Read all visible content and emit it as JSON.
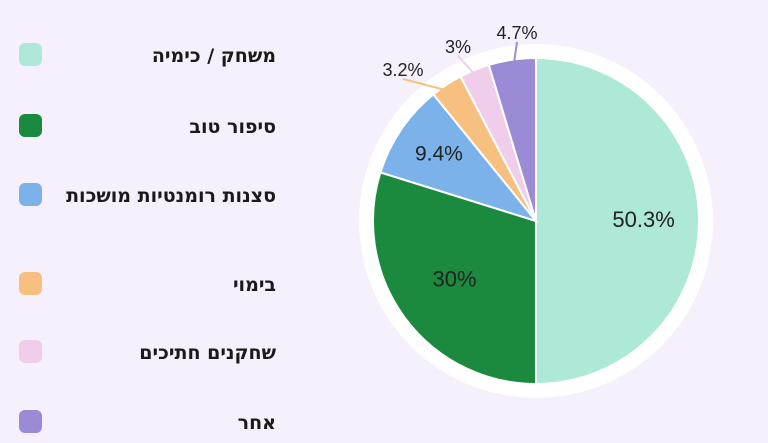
{
  "chart_data": {
    "type": "pie",
    "title": "",
    "series": [
      {
        "name": "משחק / כימיה",
        "value": 50.3,
        "label": "50.3%",
        "color": "#aee8d6"
      },
      {
        "name": "סיפור טוב",
        "value": 30,
        "label": "30%",
        "color": "#1b8a3e"
      },
      {
        "name": "סצנות רומנטיות מושכות",
        "value": 9.4,
        "label": "9.4%",
        "color": "#7cb2ea"
      },
      {
        "name": "בימוי",
        "value": 3.2,
        "label": "3.2%",
        "color": "#f7c080"
      },
      {
        "name": "שחקנים חתיכים",
        "value": 3,
        "label": "3%",
        "color": "#f0cdea"
      },
      {
        "name": "אחר",
        "value": 4.7,
        "label": "4.7%",
        "color": "#9b8ad6"
      }
    ],
    "legend_position": "left",
    "start_angle_deg": 0,
    "direction": "clockwise"
  }
}
